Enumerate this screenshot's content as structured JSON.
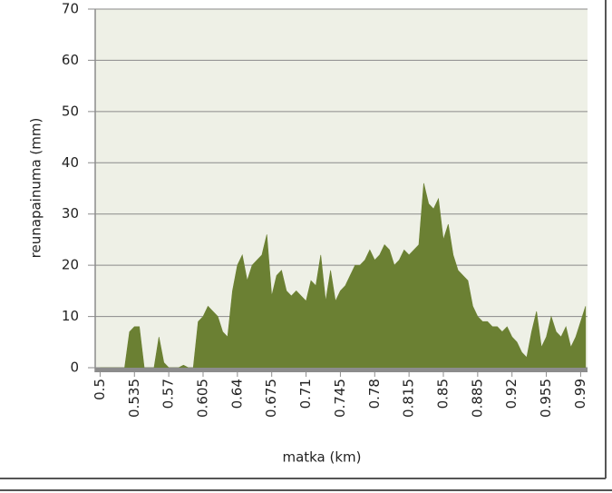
{
  "chart_data": {
    "type": "area",
    "xlabel": "matka (km)",
    "ylabel": "reunapainuma (mm)",
    "x": [
      0.5,
      0.505,
      0.51,
      0.515,
      0.52,
      0.525,
      0.53,
      0.535,
      0.54,
      0.545,
      0.55,
      0.555,
      0.56,
      0.565,
      0.57,
      0.575,
      0.58,
      0.585,
      0.59,
      0.595,
      0.6,
      0.605,
      0.61,
      0.615,
      0.62,
      0.625,
      0.63,
      0.635,
      0.64,
      0.645,
      0.65,
      0.655,
      0.66,
      0.665,
      0.67,
      0.675,
      0.68,
      0.685,
      0.69,
      0.695,
      0.7,
      0.705,
      0.71,
      0.715,
      0.72,
      0.725,
      0.73,
      0.735,
      0.74,
      0.745,
      0.75,
      0.755,
      0.76,
      0.765,
      0.77,
      0.775,
      0.78,
      0.785,
      0.79,
      0.795,
      0.8,
      0.805,
      0.81,
      0.815,
      0.82,
      0.825,
      0.83,
      0.835,
      0.84,
      0.845,
      0.85,
      0.855,
      0.86,
      0.865,
      0.87,
      0.875,
      0.88,
      0.885,
      0.89,
      0.895,
      0.9,
      0.905,
      0.91,
      0.915,
      0.92,
      0.925,
      0.93,
      0.935,
      0.94,
      0.945,
      0.95,
      0.955,
      0.96,
      0.965,
      0.97,
      0.975,
      0.98,
      0.985,
      0.99,
      0.995
    ],
    "series": [
      {
        "name": "reunapainuma",
        "color": "#6b8033",
        "values": [
          0,
          0,
          0,
          0,
          0,
          0,
          7,
          8,
          8,
          0,
          0,
          0,
          6,
          1,
          0,
          0,
          0,
          0.5,
          0,
          0,
          9,
          10,
          12,
          11,
          10,
          7,
          6,
          15,
          20,
          22,
          17,
          20,
          21,
          22,
          26,
          14,
          18,
          19,
          15,
          14,
          15,
          14,
          13,
          17,
          16,
          22,
          13,
          19,
          13,
          15,
          16,
          18,
          20,
          20,
          21,
          23,
          21,
          22,
          24,
          23,
          20,
          21,
          23,
          22,
          23,
          24,
          36,
          32,
          31,
          33,
          25,
          28,
          22,
          19,
          18,
          17,
          12,
          10,
          9,
          9,
          8,
          8,
          7,
          8,
          6,
          5,
          3,
          2,
          7,
          11,
          4,
          6,
          10,
          7,
          6,
          8,
          4,
          6,
          9,
          12
        ]
      }
    ],
    "xlim": [
      0.495,
      0.997
    ],
    "ylim": [
      0,
      70
    ],
    "xticks": [
      0.5,
      0.535,
      0.57,
      0.605,
      0.64,
      0.675,
      0.71,
      0.745,
      0.78,
      0.815,
      0.85,
      0.885,
      0.92,
      0.955,
      0.99
    ],
    "yticks": [
      0,
      10,
      20,
      30,
      40,
      50,
      60,
      70
    ],
    "grid": true
  }
}
